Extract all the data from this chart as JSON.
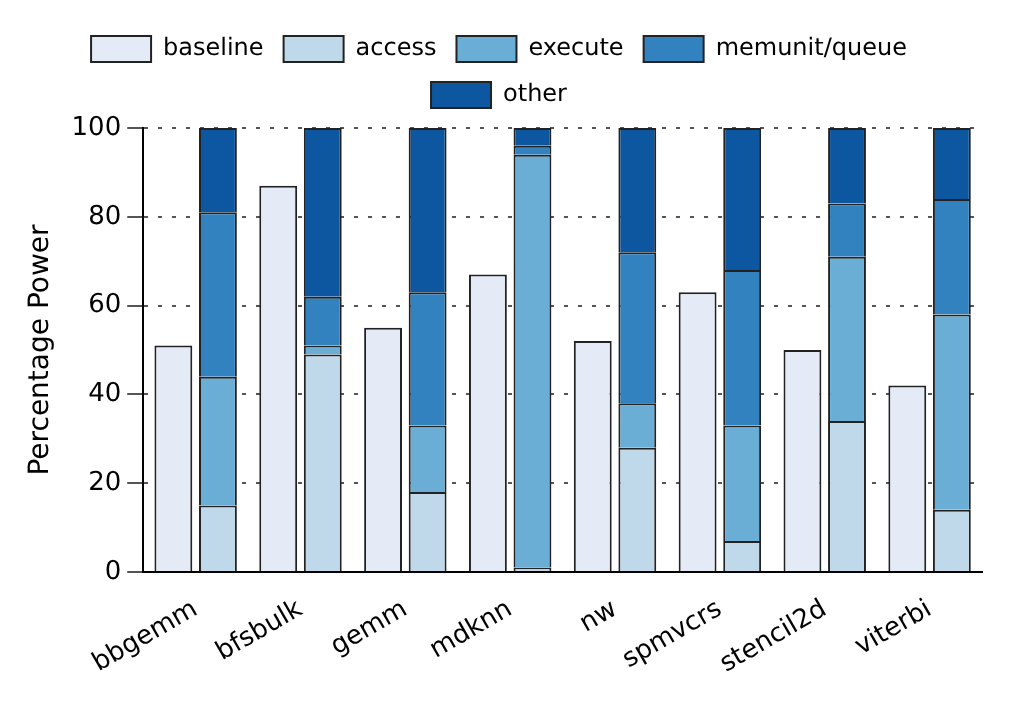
{
  "chart_data": {
    "type": "bar",
    "ylabel": "Percentage Power",
    "categories": [
      "bbgemm",
      "bfsbulk",
      "gemm",
      "mdknn",
      "nw",
      "spmvcrs",
      "stencil2d",
      "viterbi"
    ],
    "ylim": [
      0,
      100
    ],
    "yticks": [
      0,
      20,
      40,
      60,
      80,
      100
    ],
    "grid": "y",
    "legend": "top",
    "series": [
      {
        "name": "baseline",
        "color": "#e4ebf7",
        "values": [
          51,
          87,
          55,
          67,
          52,
          63,
          50,
          42
        ]
      },
      {
        "name": "access",
        "color": "#c0d9ea",
        "base": [
          0,
          0,
          0,
          0,
          0,
          0,
          0,
          0
        ],
        "values": [
          15,
          49,
          18,
          1,
          28,
          7,
          34,
          14
        ]
      },
      {
        "name": "execute",
        "color": "#6aaed6",
        "base": [
          15,
          49,
          18,
          1,
          28,
          7,
          34,
          14
        ],
        "values": [
          29,
          2,
          15,
          93,
          10,
          26,
          37,
          44
        ]
      },
      {
        "name": "memunit/queue",
        "color": "#3282c0",
        "base": [
          44,
          51,
          33,
          94,
          38,
          33,
          71,
          58
        ],
        "values": [
          37,
          11,
          30,
          2,
          34,
          35,
          12,
          26
        ]
      },
      {
        "name": "other",
        "color": "#0d56a0",
        "base": [
          81,
          62,
          63,
          96,
          72,
          68,
          83,
          84
        ],
        "values": [
          19,
          38,
          37,
          4,
          28,
          32,
          17,
          16
        ]
      }
    ]
  }
}
